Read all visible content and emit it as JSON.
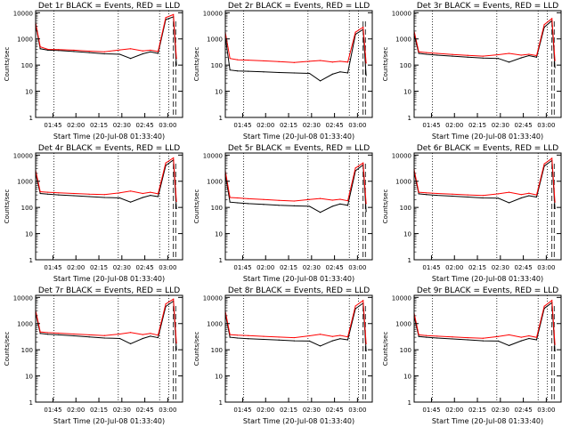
{
  "figure": {
    "xlabel": "Start Time (20-Jul-08 01:33:40)",
    "ylabel": "Counts/sec",
    "x_tick_labels": [
      "01:45",
      "02:00",
      "02:15",
      "02:30",
      "02:45",
      "03:00"
    ],
    "y_tick_labels": [
      "1",
      "10",
      "100",
      "1000",
      "10000"
    ]
  },
  "chart_data": [
    {
      "type": "line",
      "title": "Det 1r BLACK = Events, RED = LLD",
      "xlabel": "Start Time (20-Jul-08 01:33:40)",
      "ylabel": "Counts/sec",
      "x_unit": "minutes after 01:33:40",
      "y_scale": "log",
      "ylim": [
        1,
        12000
      ],
      "xlim": [
        0,
        96
      ],
      "x": [
        0,
        3,
        8,
        15,
        25,
        35,
        45,
        55,
        62,
        70,
        75,
        80,
        85,
        90,
        92
      ],
      "series": [
        {
          "name": "BLACK = Events",
          "color": "#000000",
          "values": [
            3500,
            420,
            370,
            360,
            330,
            300,
            270,
            260,
            180,
            270,
            320,
            280,
            5500,
            7000,
            100
          ]
        },
        {
          "name": "RED = LLD",
          "color": "#ff0000",
          "values": [
            4200,
            500,
            400,
            390,
            370,
            340,
            320,
            380,
            420,
            350,
            370,
            330,
            6500,
            8500,
            180
          ]
        }
      ]
    },
    {
      "type": "line",
      "title": "Det 2r BLACK = Events, RED = LLD",
      "xlabel": "Start Time (20-Jul-08 01:33:40)",
      "ylabel": "Counts/sec",
      "x_unit": "minutes after 01:33:40",
      "y_scale": "log",
      "ylim": [
        1,
        12000
      ],
      "xlim": [
        0,
        96
      ],
      "x": [
        0,
        3,
        8,
        15,
        25,
        35,
        45,
        55,
        62,
        70,
        75,
        80,
        85,
        90,
        92
      ],
      "series": [
        {
          "name": "BLACK = Events",
          "color": "#000000",
          "values": [
            1200,
            65,
            60,
            58,
            55,
            52,
            50,
            48,
            25,
            45,
            55,
            50,
            1500,
            2300,
            40
          ]
        },
        {
          "name": "RED = LLD",
          "color": "#ff0000",
          "values": [
            1800,
            180,
            160,
            155,
            145,
            135,
            125,
            140,
            150,
            130,
            140,
            130,
            1800,
            2800,
            120
          ]
        }
      ]
    },
    {
      "type": "line",
      "title": "Det 3r BLACK = Events, RED = LLD",
      "xlabel": "Start Time (20-Jul-08 01:33:40)",
      "ylabel": "Counts/sec",
      "x_unit": "minutes after 01:33:40",
      "y_scale": "log",
      "ylim": [
        1,
        12000
      ],
      "xlim": [
        0,
        96
      ],
      "x": [
        0,
        3,
        8,
        15,
        25,
        35,
        45,
        55,
        62,
        70,
        75,
        80,
        85,
        90,
        92
      ],
      "series": [
        {
          "name": "BLACK = Events",
          "color": "#000000",
          "values": [
            1500,
            280,
            260,
            240,
            220,
            200,
            185,
            180,
            130,
            190,
            230,
            200,
            2800,
            5000,
            80
          ]
        },
        {
          "name": "RED = LLD",
          "color": "#ff0000",
          "values": [
            2000,
            320,
            300,
            280,
            255,
            235,
            220,
            250,
            280,
            240,
            260,
            230,
            3500,
            6000,
            150
          ]
        }
      ]
    },
    {
      "type": "line",
      "title": "Det 4r BLACK = Events, RED = LLD",
      "xlabel": "Start Time (20-Jul-08 01:33:40)",
      "ylabel": "Counts/sec",
      "x_unit": "minutes after 01:33:40",
      "y_scale": "log",
      "ylim": [
        1,
        12000
      ],
      "xlim": [
        0,
        96
      ],
      "x": [
        0,
        3,
        8,
        15,
        25,
        35,
        45,
        55,
        62,
        70,
        75,
        80,
        85,
        90,
        92
      ],
      "series": [
        {
          "name": "BLACK = Events",
          "color": "#000000",
          "values": [
            2000,
            340,
            320,
            300,
            280,
            260,
            240,
            230,
            160,
            240,
            290,
            260,
            4000,
            6500,
            90
          ]
        },
        {
          "name": "RED = LLD",
          "color": "#ff0000",
          "values": [
            2600,
            400,
            380,
            360,
            340,
            320,
            310,
            360,
            420,
            340,
            380,
            330,
            5000,
            7800,
            170
          ]
        }
      ]
    },
    {
      "type": "line",
      "title": "Det 5r BLACK = Events, RED = LLD",
      "xlabel": "Start Time (20-Jul-08 01:33:40)",
      "ylabel": "Counts/sec",
      "x_unit": "minutes after 01:33:40",
      "y_scale": "log",
      "ylim": [
        1,
        12000
      ],
      "xlim": [
        0,
        96
      ],
      "x": [
        0,
        3,
        8,
        15,
        25,
        35,
        45,
        55,
        62,
        70,
        75,
        80,
        85,
        90,
        92
      ],
      "series": [
        {
          "name": "BLACK = Events",
          "color": "#000000",
          "values": [
            1800,
            160,
            150,
            140,
            130,
            120,
            115,
            110,
            65,
            110,
            135,
            120,
            2500,
            4200,
            70
          ]
        },
        {
          "name": "RED = LLD",
          "color": "#ff0000",
          "values": [
            2500,
            240,
            230,
            215,
            200,
            185,
            175,
            200,
            220,
            190,
            205,
            180,
            3200,
            5000,
            140
          ]
        }
      ]
    },
    {
      "type": "line",
      "title": "Det 6r BLACK = Events, RED = LLD",
      "xlabel": "Start Time (20-Jul-08 01:33:40)",
      "ylabel": "Counts/sec",
      "x_unit": "minutes after 01:33:40",
      "y_scale": "log",
      "ylim": [
        1,
        12000
      ],
      "xlim": [
        0,
        96
      ],
      "x": [
        0,
        3,
        8,
        15,
        25,
        35,
        45,
        55,
        62,
        70,
        75,
        80,
        85,
        90,
        92
      ],
      "series": [
        {
          "name": "BLACK = Events",
          "color": "#000000",
          "values": [
            2200,
            330,
            310,
            290,
            270,
            250,
            230,
            225,
            150,
            230,
            280,
            250,
            3800,
            6200,
            90
          ]
        },
        {
          "name": "RED = LLD",
          "color": "#ff0000",
          "values": [
            2800,
            380,
            360,
            340,
            320,
            300,
            285,
            330,
            380,
            310,
            350,
            300,
            4600,
            7500,
            160
          ]
        }
      ]
    },
    {
      "type": "line",
      "title": "Det 7r BLACK = Events, RED = LLD",
      "xlabel": "Start Time (20-Jul-08 01:33:40)",
      "ylabel": "Counts/sec",
      "x_unit": "minutes after 01:33:40",
      "y_scale": "log",
      "ylim": [
        1,
        12000
      ],
      "xlim": [
        0,
        96
      ],
      "x": [
        0,
        3,
        8,
        15,
        25,
        35,
        45,
        55,
        62,
        70,
        75,
        80,
        85,
        90,
        92
      ],
      "series": [
        {
          "name": "BLACK = Events",
          "color": "#000000",
          "values": [
            2500,
            420,
            390,
            370,
            340,
            310,
            280,
            270,
            170,
            270,
            330,
            290,
            4500,
            7200,
            100
          ]
        },
        {
          "name": "RED = LLD",
          "color": "#ff0000",
          "values": [
            3200,
            480,
            450,
            430,
            400,
            370,
            350,
            400,
            460,
            380,
            420,
            360,
            5600,
            8600,
            180
          ]
        }
      ]
    },
    {
      "type": "line",
      "title": "Det 8r BLACK = Events, RED = LLD",
      "xlabel": "Start Time (20-Jul-08 01:33:40)",
      "ylabel": "Counts/sec",
      "x_unit": "minutes after 01:33:40",
      "y_scale": "log",
      "ylim": [
        1,
        12000
      ],
      "xlim": [
        0,
        96
      ],
      "x": [
        0,
        3,
        8,
        15,
        25,
        35,
        45,
        55,
        62,
        70,
        75,
        80,
        85,
        90,
        92
      ],
      "series": [
        {
          "name": "BLACK = Events",
          "color": "#000000",
          "values": [
            2400,
            300,
            280,
            265,
            250,
            235,
            220,
            215,
            140,
            220,
            265,
            240,
            3700,
            6000,
            90
          ]
        },
        {
          "name": "RED = LLD",
          "color": "#ff0000",
          "values": [
            3000,
            380,
            360,
            345,
            325,
            305,
            290,
            340,
            390,
            320,
            355,
            310,
            4700,
            7600,
            170
          ]
        }
      ]
    },
    {
      "type": "line",
      "title": "Det 9r BLACK = Events, RED = LLD",
      "xlabel": "Start Time (20-Jul-08 01:33:40)",
      "ylabel": "Counts/sec",
      "x_unit": "minutes after 01:33:40",
      "y_scale": "log",
      "ylim": [
        1,
        12000
      ],
      "xlim": [
        0,
        96
      ],
      "x": [
        0,
        3,
        8,
        15,
        25,
        35,
        45,
        55,
        62,
        70,
        75,
        80,
        85,
        90,
        92
      ],
      "series": [
        {
          "name": "BLACK = Events",
          "color": "#000000",
          "values": [
            1900,
            320,
            300,
            280,
            260,
            240,
            220,
            215,
            145,
            220,
            270,
            240,
            3800,
            6300,
            90
          ]
        },
        {
          "name": "RED = LLD",
          "color": "#ff0000",
          "values": [
            2500,
            370,
            350,
            330,
            310,
            290,
            275,
            320,
            370,
            300,
            340,
            295,
            4600,
            7700,
            160
          ]
        }
      ]
    }
  ]
}
